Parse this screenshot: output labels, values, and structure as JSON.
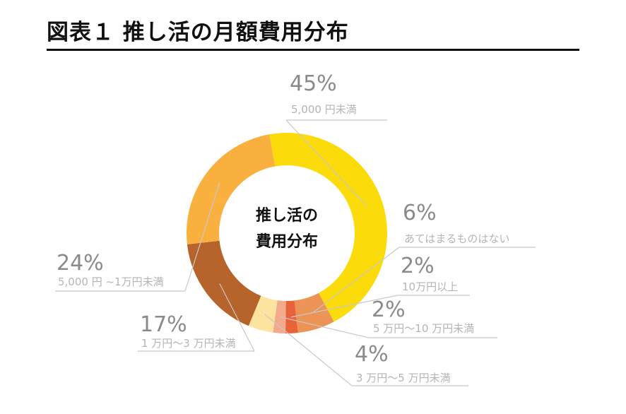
{
  "title": "図表１ 推し活の月額費用分布",
  "chart_data": {
    "type": "pie",
    "center_label": [
      "推し活の",
      "費用分布"
    ],
    "slices": [
      {
        "category": "5,000 円未満",
        "value": 45,
        "label": "45%",
        "color": "#fbdb0a"
      },
      {
        "category": "あてはまるものはない",
        "value": 6,
        "label": "6%",
        "color": "#ec9456"
      },
      {
        "category": "10万円以上",
        "value": 2,
        "label": "2%",
        "color": "#e8633a"
      },
      {
        "category": "5 万円〜10 万円未満",
        "value": 2,
        "label": "2%",
        "color": "#f4a98b"
      },
      {
        "category": "3 万円〜5 万円未満",
        "value": 4,
        "label": "4%",
        "color": "#fde3a0"
      },
      {
        "category": "1 万円〜3 万円未満",
        "value": 17,
        "label": "17%",
        "color": "#b6642b"
      },
      {
        "category": "5,000 円 ~1万円未満",
        "value": 24,
        "label": "24%",
        "color": "#f9b03f"
      }
    ]
  }
}
